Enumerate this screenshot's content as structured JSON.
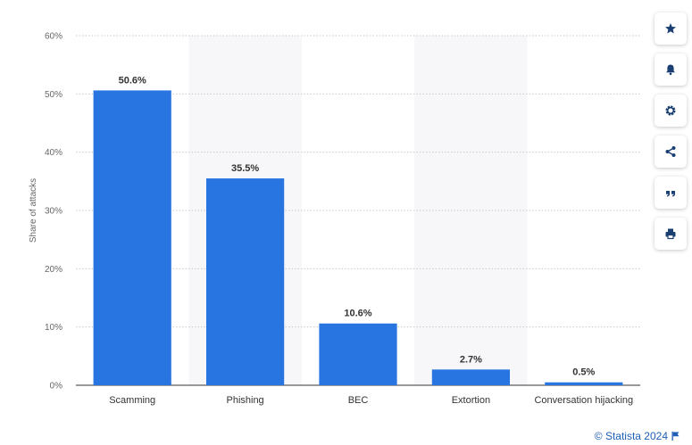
{
  "chart_data": {
    "type": "bar",
    "categories": [
      "Scamming",
      "Phishing",
      "BEC",
      "Extortion",
      "Conversation hijacking"
    ],
    "values": [
      50.6,
      35.5,
      10.6,
      2.7,
      0.5
    ],
    "data_labels": [
      "50.6%",
      "35.5%",
      "10.6%",
      "2.7%",
      "0.5%"
    ],
    "ylabel": "Share of attacks",
    "ylim": [
      0,
      60
    ],
    "yticks": [
      0,
      10,
      20,
      30,
      40,
      50,
      60
    ],
    "ytick_labels": [
      "0%",
      "10%",
      "20%",
      "30%",
      "40%",
      "50%",
      "60%"
    ],
    "bar_color": "#2874e0",
    "grid": true
  },
  "toolbar": {
    "buttons": [
      {
        "name": "favorite-button",
        "icon": "star-icon"
      },
      {
        "name": "notification-button",
        "icon": "bell-icon"
      },
      {
        "name": "settings-button",
        "icon": "gear-icon"
      },
      {
        "name": "share-button",
        "icon": "share-icon"
      },
      {
        "name": "cite-button",
        "icon": "quote-icon"
      },
      {
        "name": "print-button",
        "icon": "printer-icon"
      }
    ]
  },
  "footer": {
    "credit": "© Statista 2024"
  }
}
